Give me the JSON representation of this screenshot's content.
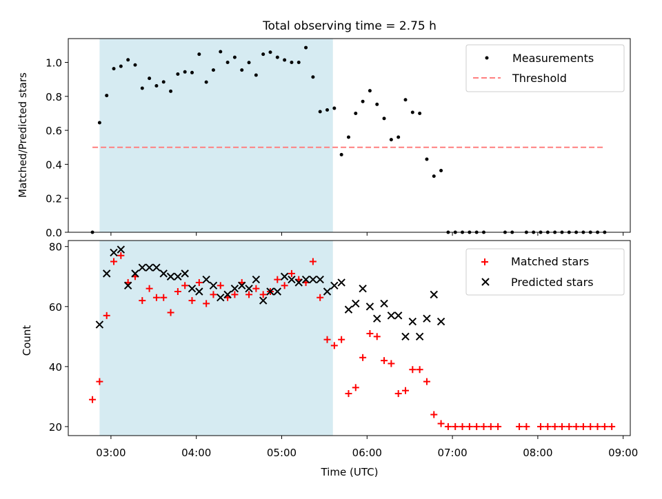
{
  "title": "Total observing time = 2.75 h",
  "colors": {
    "shade": "#add8e6",
    "threshold": "#ff7f7f",
    "matched": "#ff0000",
    "predicted": "#000000",
    "measure": "#000000"
  },
  "chart_data": [
    {
      "type": "scatter",
      "ylabel": "Matched/Predicted stars",
      "ylim": [
        0.0,
        1.14
      ],
      "yticks": [
        0.0,
        0.2,
        0.4,
        0.6,
        0.8,
        1.0
      ],
      "ytick_labels": [
        "0.0",
        "0.2",
        "0.4",
        "0.6",
        "0.8",
        "1.0"
      ],
      "xlim": [
        "02:30",
        "09:05"
      ],
      "shaded_span": [
        "02:52",
        "05:36"
      ],
      "legend": {
        "placement": "top-right",
        "entries": [
          "Measurements",
          "Threshold"
        ]
      },
      "threshold": {
        "name": "Threshold",
        "value": 0.5,
        "x_range": [
          "02:47",
          "08:47"
        ]
      },
      "series": [
        {
          "name": "Measurements",
          "points": [
            [
              "02:47",
              0.0
            ],
            [
              "02:52",
              0.645
            ],
            [
              "02:57",
              0.805
            ],
            [
              "03:02",
              0.963
            ],
            [
              "03:07",
              0.977
            ],
            [
              "03:12",
              1.015
            ],
            [
              "03:17",
              0.985
            ],
            [
              "03:22",
              0.848
            ],
            [
              "03:27",
              0.906
            ],
            [
              "03:32",
              0.862
            ],
            [
              "03:37",
              0.885
            ],
            [
              "03:42",
              0.83
            ],
            [
              "03:47",
              0.931
            ],
            [
              "03:52",
              0.944
            ],
            [
              "03:57",
              0.94
            ],
            [
              "04:02",
              1.048
            ],
            [
              "04:07",
              0.884
            ],
            [
              "04:12",
              0.955
            ],
            [
              "04:17",
              1.063
            ],
            [
              "04:22",
              1.0
            ],
            [
              "04:27",
              1.03
            ],
            [
              "04:32",
              0.955
            ],
            [
              "04:37",
              0.999
            ],
            [
              "04:42",
              0.925
            ],
            [
              "04:47",
              1.048
            ],
            [
              "04:52",
              1.06
            ],
            [
              "04:57",
              1.03
            ],
            [
              "05:02",
              1.014
            ],
            [
              "05:07",
              1.0
            ],
            [
              "05:12",
              1.0
            ],
            [
              "05:17",
              1.087
            ],
            [
              "05:22",
              0.914
            ],
            [
              "05:27",
              0.71
            ],
            [
              "05:32",
              0.72
            ],
            [
              "05:37",
              0.73
            ],
            [
              "05:42",
              0.457
            ],
            [
              "05:47",
              0.56
            ],
            [
              "05:52",
              0.7
            ],
            [
              "05:57",
              0.77
            ],
            [
              "06:02",
              0.833
            ],
            [
              "06:07",
              0.753
            ],
            [
              "06:12",
              0.67
            ],
            [
              "06:17",
              0.545
            ],
            [
              "06:22",
              0.56
            ],
            [
              "06:27",
              0.78
            ],
            [
              "06:32",
              0.706
            ],
            [
              "06:37",
              0.7
            ],
            [
              "06:42",
              0.43
            ],
            [
              "06:47",
              0.33
            ],
            [
              "06:52",
              0.363
            ],
            [
              "06:57",
              0.0
            ],
            [
              "07:02",
              0.0
            ],
            [
              "07:07",
              0.0
            ],
            [
              "07:12",
              0.0
            ],
            [
              "07:17",
              0.0
            ],
            [
              "07:22",
              0.0
            ],
            [
              "07:37",
              0.0
            ],
            [
              "07:42",
              0.0
            ],
            [
              "07:52",
              0.0
            ],
            [
              "07:57",
              0.0
            ],
            [
              "08:02",
              0.0
            ],
            [
              "08:07",
              0.0
            ],
            [
              "08:12",
              0.0
            ],
            [
              "08:17",
              0.0
            ],
            [
              "08:22",
              0.0
            ],
            [
              "08:27",
              0.0
            ],
            [
              "08:32",
              0.0
            ],
            [
              "08:37",
              0.0
            ],
            [
              "08:42",
              0.0
            ],
            [
              "08:47",
              0.0
            ]
          ]
        }
      ]
    },
    {
      "type": "scatter",
      "xlabel": "Time (UTC)",
      "ylabel": "Count",
      "ylim": [
        17.0,
        82.0
      ],
      "yticks": [
        20,
        40,
        60,
        80
      ],
      "ytick_labels": [
        "20",
        "40",
        "60",
        "80"
      ],
      "xlim": [
        "02:30",
        "09:05"
      ],
      "xticks": [
        "03:00",
        "04:00",
        "05:00",
        "06:00",
        "07:00",
        "08:00",
        "09:00"
      ],
      "shaded_span": [
        "02:52",
        "05:36"
      ],
      "legend": {
        "placement": "top-right",
        "entries": [
          "Matched stars",
          "Predicted stars"
        ]
      },
      "series": [
        {
          "name": "Matched stars",
          "marker": "+",
          "points": [
            [
              "02:47",
              29
            ],
            [
              "02:52",
              35
            ],
            [
              "02:57",
              57
            ],
            [
              "03:02",
              75
            ],
            [
              "03:07",
              77
            ],
            [
              "03:12",
              68
            ],
            [
              "03:17",
              70
            ],
            [
              "03:22",
              62
            ],
            [
              "03:27",
              66
            ],
            [
              "03:32",
              63
            ],
            [
              "03:37",
              63
            ],
            [
              "03:42",
              58
            ],
            [
              "03:47",
              65
            ],
            [
              "03:52",
              67
            ],
            [
              "03:57",
              62
            ],
            [
              "04:02",
              68
            ],
            [
              "04:07",
              61
            ],
            [
              "04:12",
              64
            ],
            [
              "04:17",
              67
            ],
            [
              "04:22",
              63
            ],
            [
              "04:27",
              64
            ],
            [
              "04:32",
              68
            ],
            [
              "04:37",
              64
            ],
            [
              "04:42",
              66
            ],
            [
              "04:47",
              64
            ],
            [
              "04:52",
              65
            ],
            [
              "04:57",
              69
            ],
            [
              "05:02",
              67
            ],
            [
              "05:07",
              71
            ],
            [
              "05:12",
              69
            ],
            [
              "05:17",
              68
            ],
            [
              "05:22",
              75
            ],
            [
              "05:27",
              63
            ],
            [
              "05:32",
              49
            ],
            [
              "05:37",
              47
            ],
            [
              "05:42",
              49
            ],
            [
              "05:47",
              31
            ],
            [
              "05:52",
              33
            ],
            [
              "05:57",
              43
            ],
            [
              "06:02",
              51
            ],
            [
              "06:07",
              50
            ],
            [
              "06:12",
              42
            ],
            [
              "06:17",
              41
            ],
            [
              "06:22",
              31
            ],
            [
              "06:27",
              32
            ],
            [
              "06:32",
              39
            ],
            [
              "06:37",
              39
            ],
            [
              "06:42",
              35
            ],
            [
              "06:47",
              24
            ],
            [
              "06:52",
              21
            ],
            [
              "06:57",
              20
            ],
            [
              "07:02",
              20
            ],
            [
              "07:07",
              20
            ],
            [
              "07:12",
              20
            ],
            [
              "07:17",
              20
            ],
            [
              "07:22",
              20
            ],
            [
              "07:27",
              20
            ],
            [
              "07:32",
              20
            ],
            [
              "07:47",
              20
            ],
            [
              "07:52",
              20
            ],
            [
              "08:02",
              20
            ],
            [
              "08:07",
              20
            ],
            [
              "08:12",
              20
            ],
            [
              "08:17",
              20
            ],
            [
              "08:22",
              20
            ],
            [
              "08:27",
              20
            ],
            [
              "08:32",
              20
            ],
            [
              "08:37",
              20
            ],
            [
              "08:42",
              20
            ],
            [
              "08:47",
              20
            ],
            [
              "08:52",
              20
            ]
          ]
        },
        {
          "name": "Predicted stars",
          "marker": "x",
          "points": [
            [
              "02:52",
              54
            ],
            [
              "02:57",
              71
            ],
            [
              "03:02",
              78
            ],
            [
              "03:07",
              79
            ],
            [
              "03:12",
              67
            ],
            [
              "03:17",
              71
            ],
            [
              "03:22",
              73
            ],
            [
              "03:27",
              73
            ],
            [
              "03:32",
              73
            ],
            [
              "03:37",
              71
            ],
            [
              "03:42",
              70
            ],
            [
              "03:47",
              70
            ],
            [
              "03:52",
              71
            ],
            [
              "03:57",
              66
            ],
            [
              "04:02",
              65
            ],
            [
              "04:07",
              69
            ],
            [
              "04:12",
              67
            ],
            [
              "04:17",
              63
            ],
            [
              "04:22",
              64
            ],
            [
              "04:27",
              66
            ],
            [
              "04:32",
              67
            ],
            [
              "04:37",
              66
            ],
            [
              "04:42",
              69
            ],
            [
              "04:47",
              62
            ],
            [
              "04:52",
              65
            ],
            [
              "04:57",
              65
            ],
            [
              "05:02",
              70
            ],
            [
              "05:07",
              69
            ],
            [
              "05:12",
              68
            ],
            [
              "05:17",
              69
            ],
            [
              "05:22",
              69
            ],
            [
              "05:27",
              69
            ],
            [
              "05:32",
              65
            ],
            [
              "05:37",
              67
            ],
            [
              "05:42",
              68
            ],
            [
              "05:47",
              59
            ],
            [
              "05:52",
              61
            ],
            [
              "05:57",
              66
            ],
            [
              "06:02",
              60
            ],
            [
              "06:07",
              56
            ],
            [
              "06:12",
              61
            ],
            [
              "06:17",
              57
            ],
            [
              "06:22",
              57
            ],
            [
              "06:27",
              50
            ],
            [
              "06:32",
              55
            ],
            [
              "06:37",
              50
            ],
            [
              "06:42",
              56
            ],
            [
              "06:47",
              64
            ],
            [
              "06:52",
              55
            ]
          ]
        }
      ]
    }
  ]
}
